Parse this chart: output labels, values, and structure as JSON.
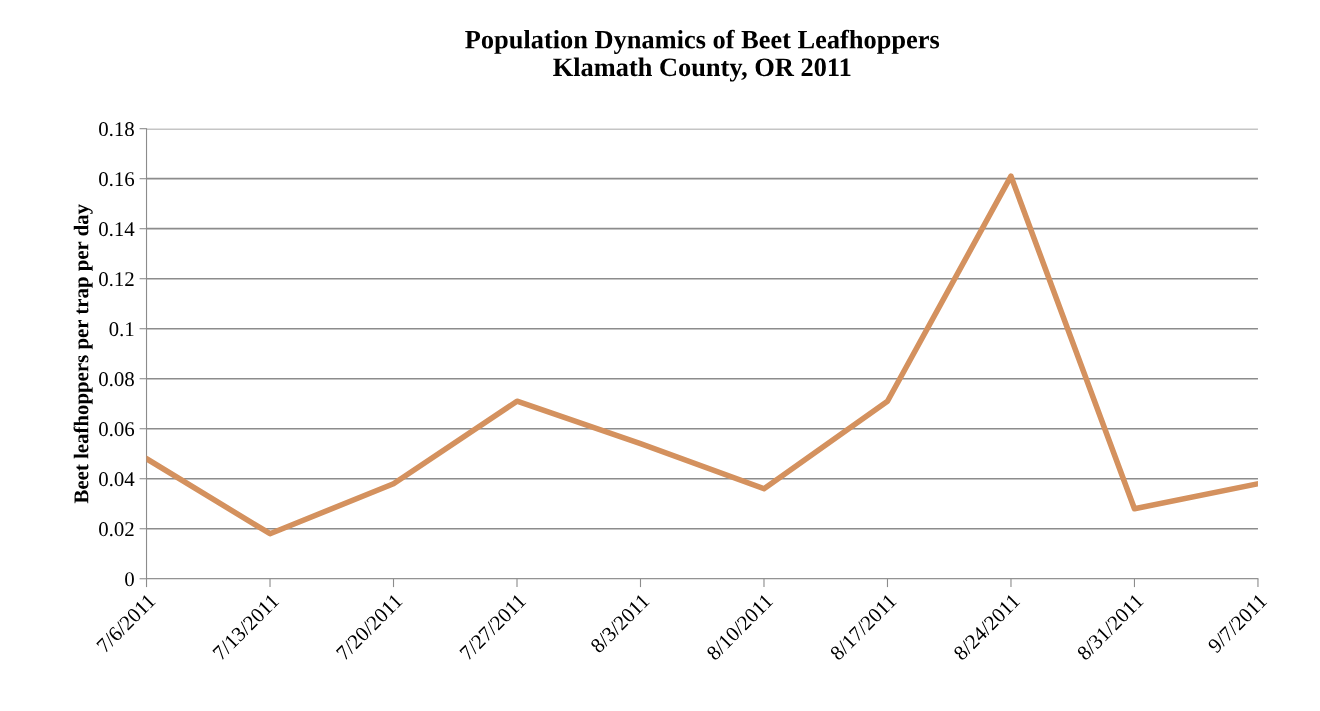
{
  "chart_data": {
    "type": "line",
    "title": "Population Dynamics of Beet Leafhoppers\nKlamath County, OR 2011",
    "ylabel": "Beet leafhoppers per trap per day",
    "categories": [
      "7/6/2011",
      "7/13/2011",
      "7/20/2011",
      "7/27/2011",
      "8/3/2011",
      "8/10/2011",
      "8/17/2011",
      "8/24/2011",
      "8/31/2011",
      "9/7/2011"
    ],
    "series": [
      {
        "color": "#d4915e",
        "values": [
          0.048,
          0.018,
          0.038,
          0.071,
          0.054,
          0.036,
          0.071,
          0.161,
          0.028,
          0.038
        ]
      }
    ],
    "ylim": [
      0,
      0.18
    ],
    "yticks": [
      {
        "value": 0,
        "label": "0"
      },
      0.02,
      0.04,
      0.06,
      0.08,
      {
        "value": 0.1,
        "label": "0.1"
      },
      0.12,
      0.14,
      0.16,
      0.18
    ],
    "grid": "y",
    "legend": false,
    "marker": "none",
    "line_style": "solid"
  }
}
